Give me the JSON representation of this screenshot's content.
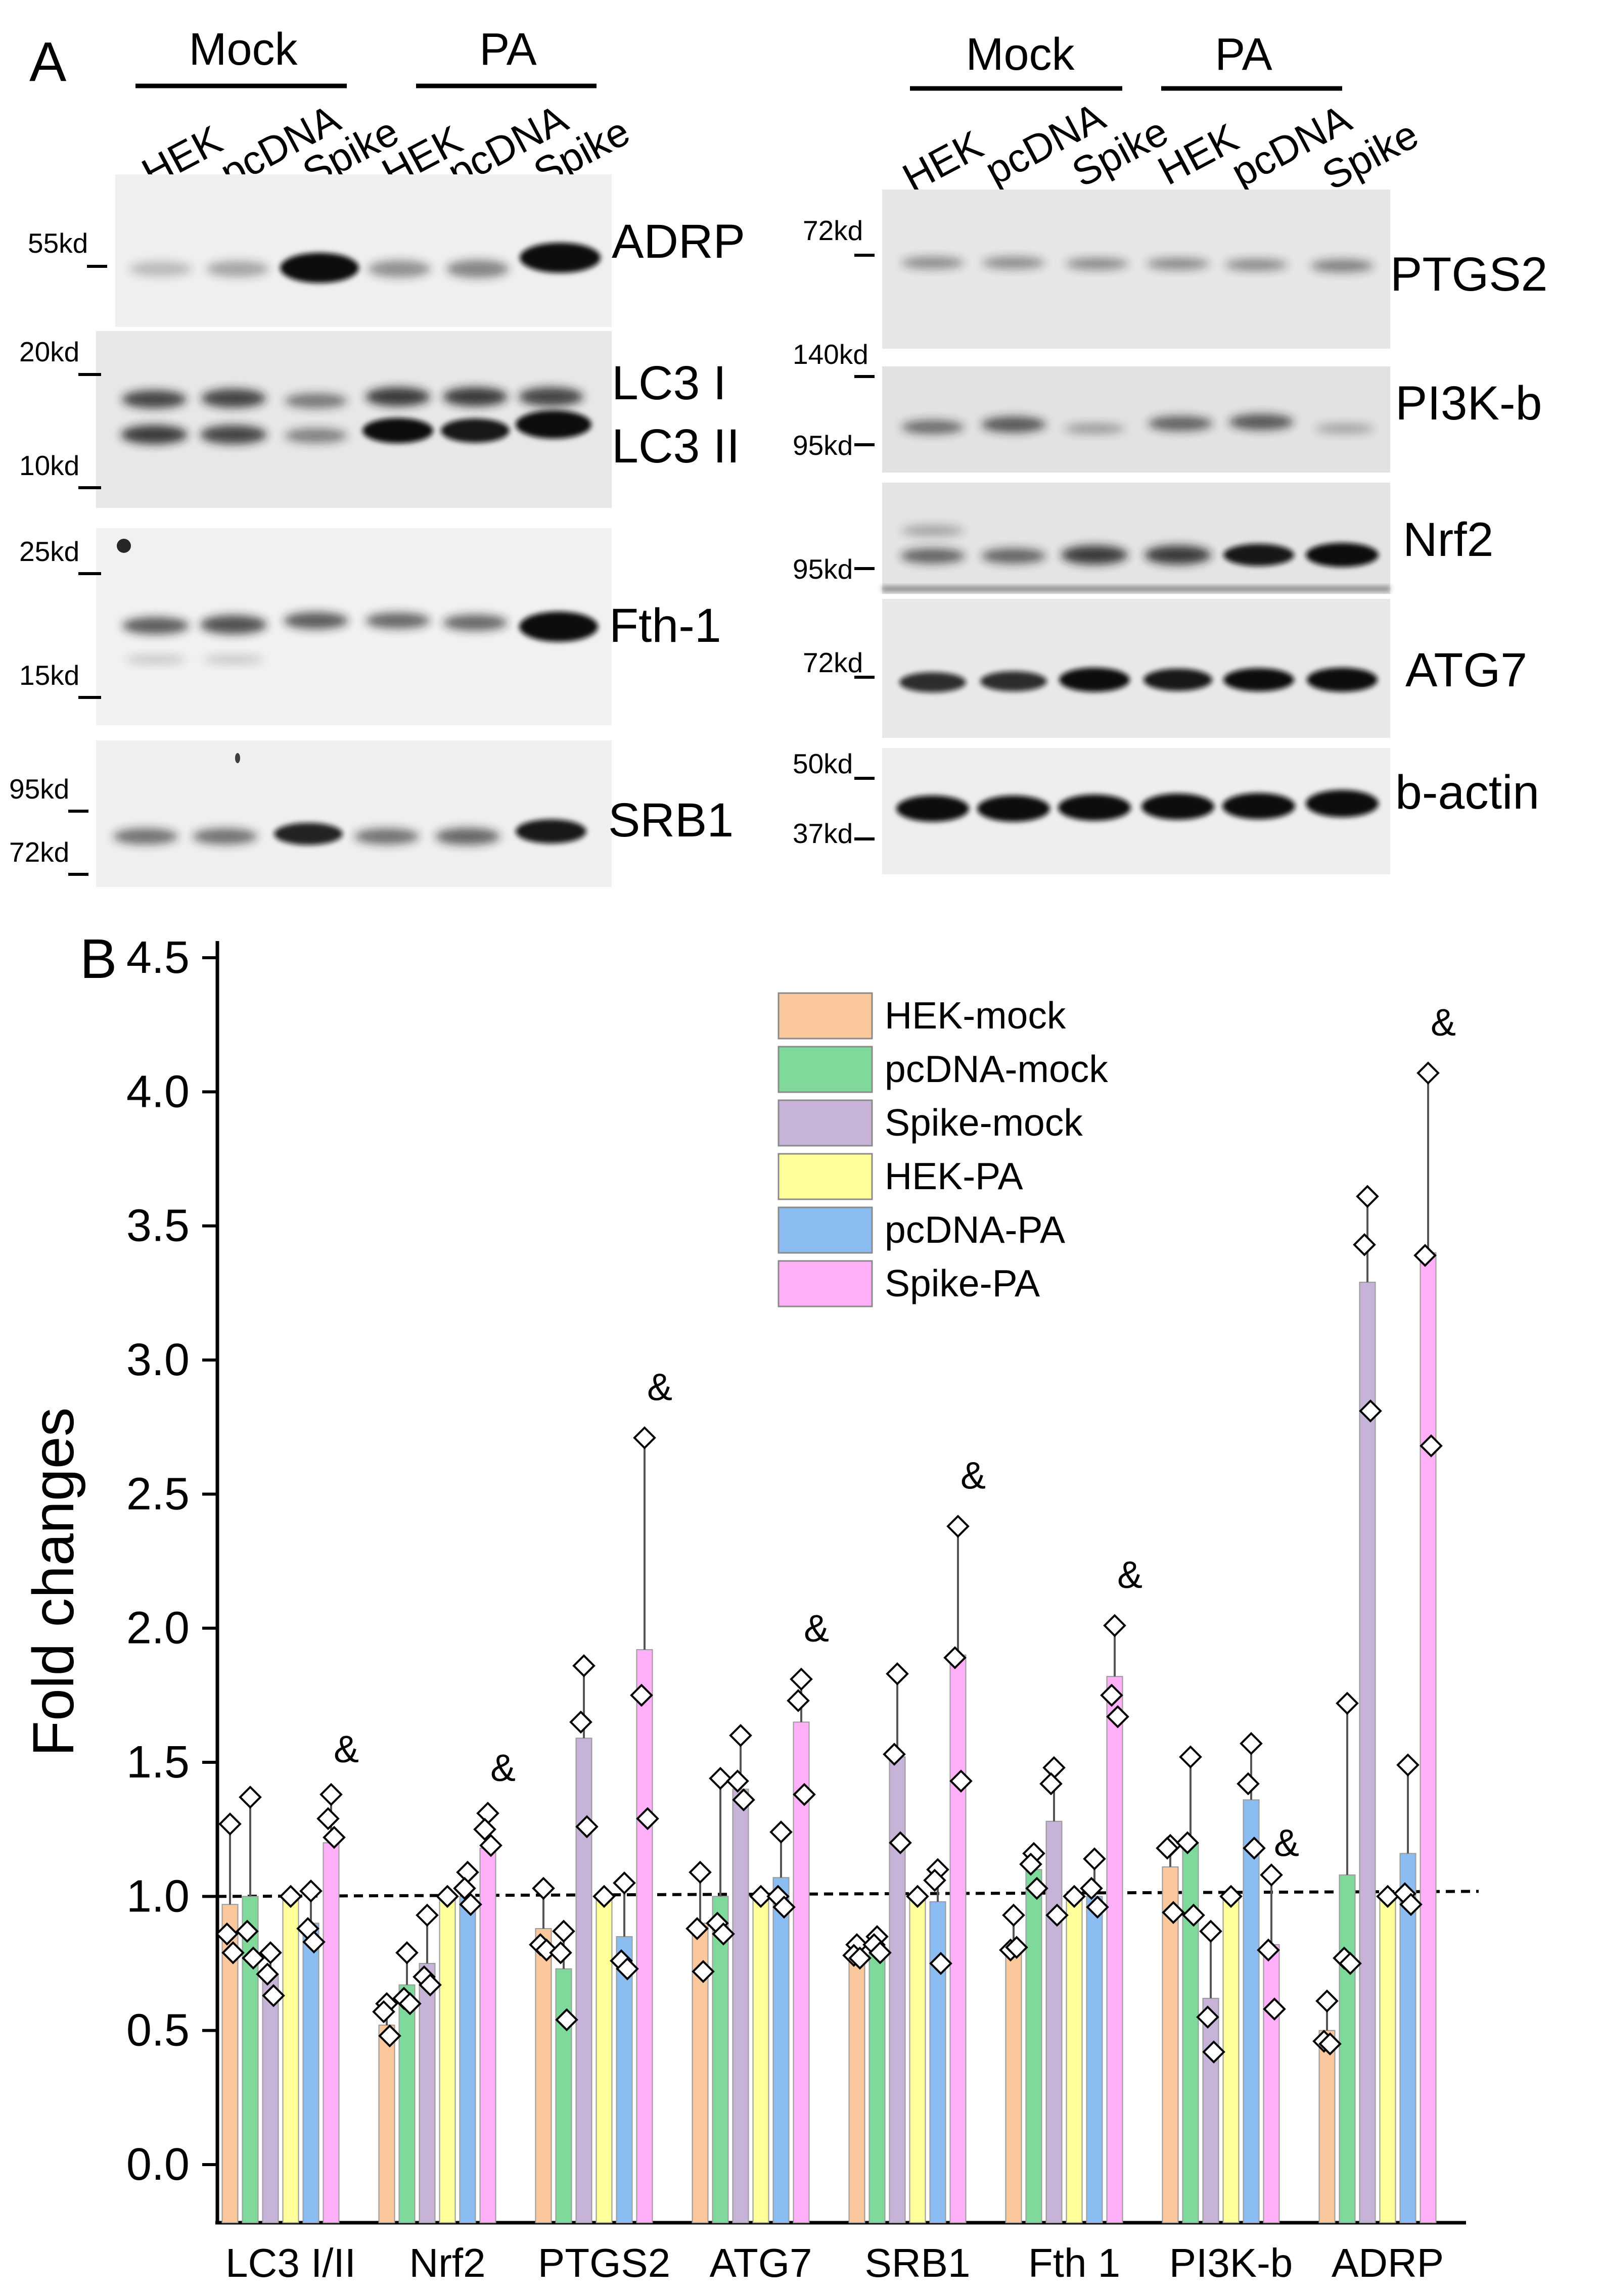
{
  "panel_a": {
    "label": "A",
    "left_blot": {
      "group_labels": [
        "Mock",
        "PA"
      ],
      "lane_labels": [
        "HEK",
        "pcDNA",
        "Spike",
        "HEK",
        "pcDNA",
        "Spike"
      ],
      "strips": [
        {
          "protein": [
            "ADRP"
          ],
          "markers": [
            "55kd"
          ],
          "bands": [
            [
              0.25,
              0.35,
              1.0,
              0.45,
              0.5,
              1.0
            ]
          ]
        },
        {
          "protein": [
            "LC3 I",
            "LC3 II"
          ],
          "markers": [
            "20kd",
            "10kd"
          ],
          "bands": [
            [
              0.8,
              0.8,
              0.55,
              0.85,
              0.85,
              0.8
            ],
            [
              0.85,
              0.8,
              0.5,
              1.0,
              0.95,
              1.0
            ]
          ]
        },
        {
          "protein": [
            "Fth-1"
          ],
          "markers": [
            "25kd",
            "15kd"
          ],
          "bands": [
            [
              0.7,
              0.75,
              0.7,
              0.65,
              0.65,
              1.0
            ]
          ]
        },
        {
          "protein": [
            "SRB1"
          ],
          "markers": [
            "95kd",
            "72kd"
          ],
          "bands": [
            [
              0.6,
              0.6,
              0.9,
              0.6,
              0.65,
              0.95
            ]
          ]
        }
      ]
    },
    "right_blot": {
      "group_labels": [
        "Mock",
        "PA"
      ],
      "lane_labels": [
        "HEK",
        "pcDNA",
        "Spike",
        "HEK",
        "pcDNA",
        "Spike"
      ],
      "strips": [
        {
          "protein": [
            "PTGS2"
          ],
          "markers": [
            "72kd"
          ],
          "bands": [
            [
              0.45,
              0.45,
              0.45,
              0.45,
              0.45,
              0.5
            ]
          ]
        },
        {
          "protein": [
            "PI3K-b"
          ],
          "markers": [
            "140kd",
            "95kd"
          ],
          "bands": [
            [
              0.6,
              0.7,
              0.35,
              0.65,
              0.7,
              0.3
            ]
          ]
        },
        {
          "protein": [
            "Nrf2"
          ],
          "markers": [
            "95kd"
          ],
          "bands": [
            [
              0.65,
              0.65,
              0.85,
              0.85,
              0.95,
              1.0
            ]
          ]
        },
        {
          "protein": [
            "ATG7"
          ],
          "markers": [
            "72kd"
          ],
          "bands": [
            [
              0.85,
              0.85,
              1.0,
              0.95,
              1.0,
              1.0
            ]
          ]
        },
        {
          "protein": [
            "b-actin"
          ],
          "markers": [
            "50kd",
            "37kd"
          ],
          "bands": [
            [
              1.0,
              1.0,
              1.0,
              1.0,
              1.0,
              1.0
            ]
          ]
        }
      ]
    }
  },
  "panel_b": {
    "label": "B"
  },
  "chart_data": {
    "type": "bar",
    "ylabel": "Fold changes",
    "xlabel": "",
    "ylim": [
      -0.05,
      4.5
    ],
    "yticks": [
      "0.0",
      "0.5",
      "1.0",
      "1.5",
      "2.0",
      "2.5",
      "3.0",
      "3.5",
      "4.0",
      "4.5"
    ],
    "reference_line": 1.0,
    "categories": [
      "LC3 I/II",
      "Nrf2",
      "PTGS2",
      "ATG7",
      "SRB1",
      "Fth 1",
      "PI3K-b",
      "ADRP"
    ],
    "legend_position": "top-right",
    "series": [
      {
        "name": "HEK-mock",
        "color": "#fbc79c",
        "values": [
          0.97,
          0.52,
          0.88,
          0.9,
          0.79,
          0.81,
          1.11,
          0.5
        ],
        "errors": [
          1.27,
          0.6,
          1.03,
          1.09,
          0.82,
          0.93,
          1.18,
          0.61
        ],
        "points": [
          [
            1.27,
            0.86,
            0.79
          ],
          [
            0.6,
            0.57,
            0.48
          ],
          [
            1.03,
            0.82,
            0.8
          ],
          [
            1.09,
            0.88,
            0.72
          ],
          [
            0.82,
            0.78,
            0.77
          ],
          [
            0.93,
            0.8,
            0.81
          ],
          [
            1.19,
            1.18,
            0.94
          ],
          [
            0.61,
            0.46,
            0.45
          ]
        ]
      },
      {
        "name": "pcDNA-mock",
        "color": "#7fd99b",
        "values": [
          1.0,
          0.67,
          0.73,
          1.0,
          0.82,
          1.1,
          1.2,
          1.08
        ],
        "errors": [
          1.37,
          0.79,
          0.87,
          1.44,
          0.85,
          1.16,
          1.52,
          1.72
        ],
        "points": [
          [
            1.37,
            0.87,
            0.77
          ],
          [
            0.79,
            0.62,
            0.6
          ],
          [
            0.87,
            0.79,
            0.54
          ],
          [
            1.44,
            0.9,
            0.86
          ],
          [
            0.85,
            0.82,
            0.79
          ],
          [
            1.16,
            1.12,
            1.03
          ],
          [
            1.52,
            1.2,
            0.93
          ],
          [
            1.72,
            0.77,
            0.75
          ]
        ]
      },
      {
        "name": "Spike-mock",
        "color": "#c7b3d7",
        "values": [
          0.71,
          0.75,
          1.59,
          1.4,
          1.52,
          1.28,
          0.62,
          3.29
        ],
        "errors": [
          0.79,
          0.93,
          1.86,
          1.6,
          1.83,
          1.48,
          0.87,
          3.61
        ],
        "points": [
          [
            0.79,
            0.71,
            0.63
          ],
          [
            0.93,
            0.7,
            0.67
          ],
          [
            1.86,
            1.65,
            1.26
          ],
          [
            1.6,
            1.43,
            1.36
          ],
          [
            1.83,
            1.53,
            1.2
          ],
          [
            1.48,
            1.42,
            0.93
          ],
          [
            0.87,
            0.55,
            0.42
          ],
          [
            3.61,
            3.43,
            2.81
          ]
        ]
      },
      {
        "name": "HEK-PA",
        "color": "#ffff9a",
        "values": [
          1.0,
          1.0,
          1.0,
          1.0,
          1.0,
          1.0,
          1.0,
          1.0
        ],
        "errors": null,
        "points": [
          [
            1.0
          ],
          [
            1.0
          ],
          [
            1.0
          ],
          [
            1.0
          ],
          [
            1.0
          ],
          [
            1.0
          ],
          [
            1.0
          ],
          [
            1.0
          ]
        ]
      },
      {
        "name": "pcDNA-PA",
        "color": "#8bbdf2",
        "values": [
          0.9,
          1.0,
          0.85,
          1.07,
          0.98,
          1.0,
          1.36,
          1.16
        ],
        "errors": [
          1.02,
          1.09,
          1.05,
          1.24,
          1.1,
          1.14,
          1.57,
          1.49
        ],
        "points": [
          [
            1.02,
            0.88,
            0.83
          ],
          [
            1.09,
            1.03,
            0.97
          ],
          [
            1.05,
            0.76,
            0.73
          ],
          [
            1.24,
            1.0,
            0.96
          ],
          [
            1.1,
            1.06,
            0.75
          ],
          [
            1.14,
            1.03,
            0.96
          ],
          [
            1.57,
            1.42,
            1.18
          ],
          [
            1.49,
            1.01,
            0.97
          ]
        ]
      },
      {
        "name": "Spike-PA",
        "color": "#ffb0f8",
        "values": [
          1.2,
          1.18,
          1.92,
          1.65,
          1.9,
          1.82,
          0.82,
          3.4
        ],
        "errors": [
          1.38,
          1.31,
          2.71,
          1.81,
          2.38,
          2.01,
          1.08,
          4.07
        ],
        "points": [
          [
            1.38,
            1.29,
            1.22
          ],
          [
            1.31,
            1.25,
            1.19
          ],
          [
            2.71,
            1.75,
            1.29
          ],
          [
            1.81,
            1.73,
            1.38
          ],
          [
            2.38,
            1.89,
            1.43
          ],
          [
            2.01,
            1.75,
            1.67
          ],
          [
            1.08,
            0.8,
            0.58
          ],
          [
            4.07,
            3.39,
            2.68
          ]
        ]
      }
    ],
    "annotations": [
      {
        "text": "&",
        "category": "LC3 I/II",
        "series": "Spike-PA",
        "y": 1.5
      },
      {
        "text": "&",
        "category": "Nrf2",
        "series": "Spike-PA",
        "y": 1.43
      },
      {
        "text": "&",
        "category": "PTGS2",
        "series": "Spike-PA",
        "y": 2.85
      },
      {
        "text": "&",
        "category": "ATG7",
        "series": "Spike-PA",
        "y": 1.95
      },
      {
        "text": "&",
        "category": "SRB1",
        "series": "Spike-PA",
        "y": 2.52
      },
      {
        "text": "&",
        "category": "Fth 1",
        "series": "Spike-PA",
        "y": 2.15
      },
      {
        "text": "&",
        "category": "PI3K-b",
        "series": "Spike-PA",
        "y": 1.15
      },
      {
        "text": "&",
        "category": "ADRP",
        "series": "Spike-PA",
        "y": 4.21
      }
    ]
  }
}
